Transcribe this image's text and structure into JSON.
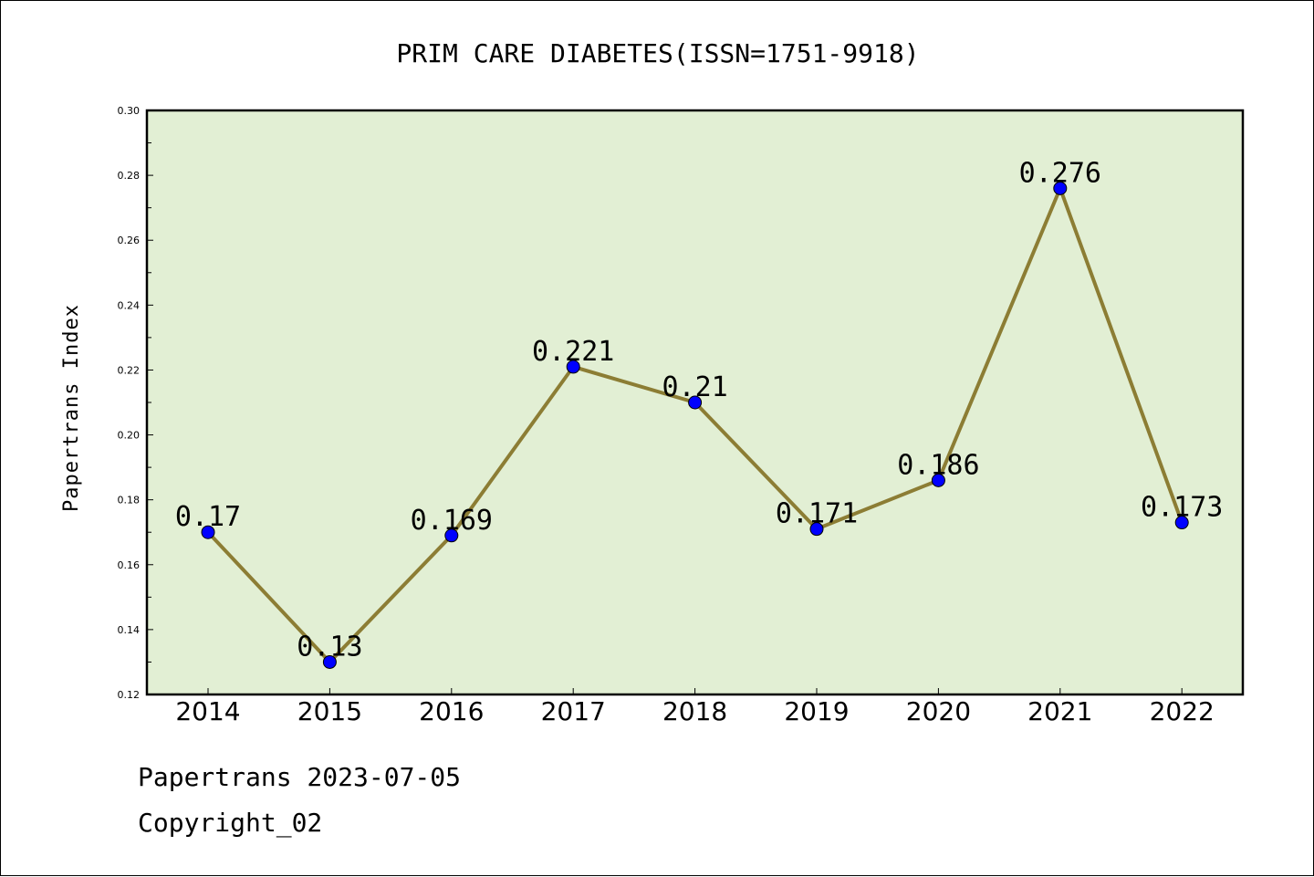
{
  "chart_data": {
    "type": "line",
    "title": "PRIM CARE DIABETES(ISSN=1751-9918)",
    "xlabel": "",
    "ylabel": "Papertrans Index",
    "categories": [
      "2014",
      "2015",
      "2016",
      "2017",
      "2018",
      "2019",
      "2020",
      "2021",
      "2022"
    ],
    "values": [
      0.17,
      0.13,
      0.169,
      0.221,
      0.21,
      0.171,
      0.186,
      0.276,
      0.173
    ],
    "data_labels": [
      "0.17",
      "0.13",
      "0.169",
      "0.221",
      "0.21",
      "0.171",
      "0.186",
      "0.276",
      "0.173"
    ],
    "ylim": [
      0.12,
      0.3
    ],
    "yticks": [
      "0.12",
      "0.14",
      "0.16",
      "0.18",
      "0.20",
      "0.22",
      "0.24",
      "0.26",
      "0.28",
      "0.30"
    ],
    "grid": false,
    "legend": "none",
    "colors": {
      "plot_background": "#e2efd4",
      "line": "#8c7d34",
      "marker": "#0000ff"
    }
  },
  "footer": {
    "line1": "Papertrans 2023-07-05",
    "line2": "Copyright_02"
  }
}
